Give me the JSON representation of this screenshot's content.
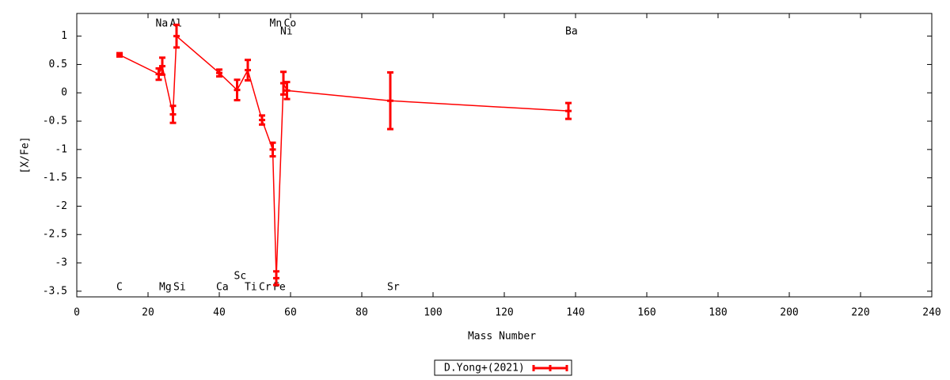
{
  "chart_data": {
    "type": "errorline",
    "xlabel": "Mass Number",
    "ylabel": "[X/Fe]",
    "xlim": [
      0,
      240
    ],
    "xticks": [
      0,
      20,
      40,
      60,
      80,
      100,
      120,
      140,
      160,
      180,
      200,
      220,
      240
    ],
    "ylim": [
      -3.6,
      1.4
    ],
    "yticks": [
      1,
      0.5,
      0,
      -0.5,
      -1,
      -1.5,
      -2,
      -2.5,
      -3,
      -3.5
    ],
    "series": [
      {
        "name": "D.Yong+(2021)",
        "color": "#ff0000",
        "x": [
          12,
          23,
          24,
          27,
          28,
          40,
          45,
          48,
          52,
          55,
          56,
          58,
          59,
          88,
          138
        ],
        "values": [
          0.67,
          0.33,
          0.47,
          -0.38,
          1.0,
          0.35,
          0.05,
          0.4,
          -0.48,
          -1.0,
          -3.27,
          0.17,
          0.04,
          -0.14,
          -0.32
        ],
        "errors": [
          0.03,
          0.1,
          0.15,
          0.15,
          0.2,
          0.06,
          0.18,
          0.18,
          0.08,
          0.12,
          0.12,
          0.2,
          0.15,
          0.5,
          0.14
        ]
      }
    ],
    "annotations": [
      {
        "text": "C",
        "x": 12,
        "y": -3.43
      },
      {
        "text": "Na",
        "x": 23,
        "y": 1.22
      },
      {
        "text": "Mg",
        "x": 24,
        "y": -3.43
      },
      {
        "text": "Al",
        "x": 27,
        "y": 1.22
      },
      {
        "text": "Si",
        "x": 28,
        "y": -3.43
      },
      {
        "text": "Ca",
        "x": 40,
        "y": -3.43
      },
      {
        "text": "Sc",
        "x": 45,
        "y": -3.24
      },
      {
        "text": "Ti",
        "x": 48,
        "y": -3.43
      },
      {
        "text": "Cr",
        "x": 52,
        "y": -3.43
      },
      {
        "text": "Mn",
        "x": 55,
        "y": 1.22
      },
      {
        "text": "Fe",
        "x": 56,
        "y": -3.43
      },
      {
        "text": "Ni",
        "x": 58,
        "y": 1.08
      },
      {
        "text": "Co",
        "x": 59,
        "y": 1.22
      },
      {
        "text": "Sr",
        "x": 88,
        "y": -3.43
      },
      {
        "text": "Ba",
        "x": 138,
        "y": 1.08
      }
    ]
  }
}
